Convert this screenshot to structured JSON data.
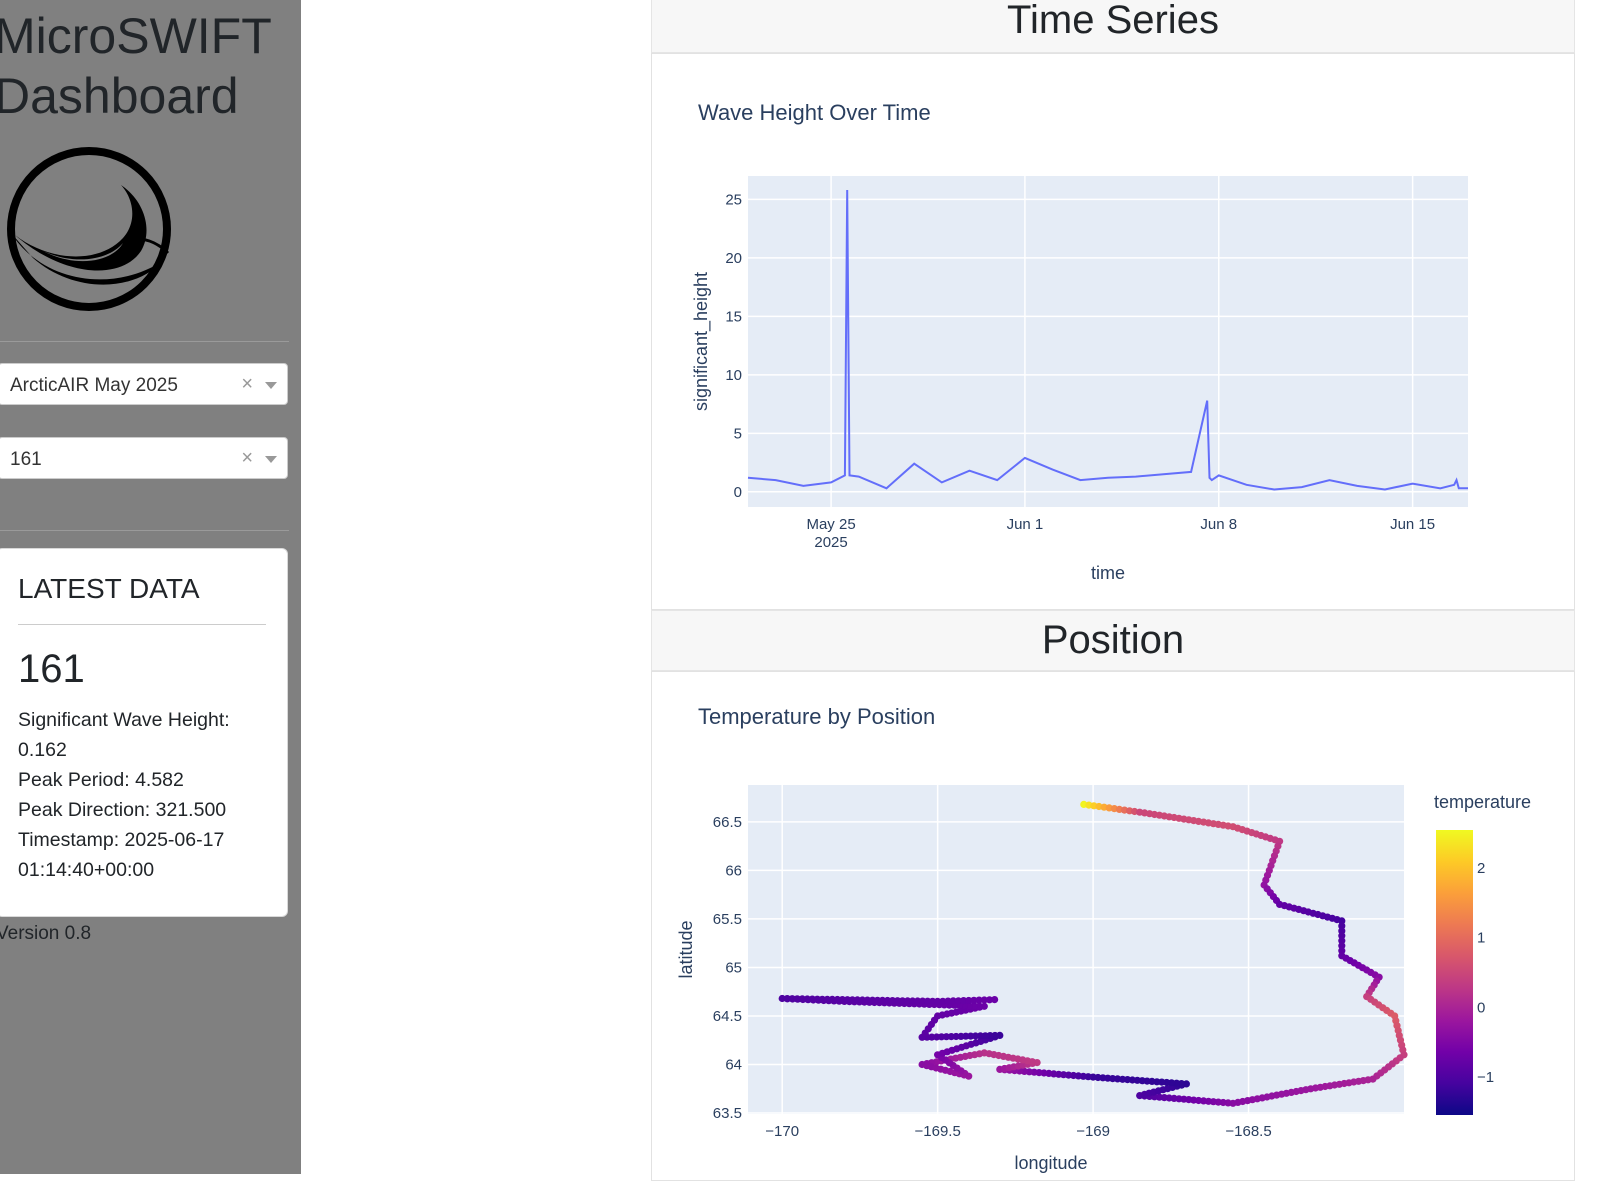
{
  "app": {
    "title_line1": "MicroSWIFT",
    "title_line2": "Dashboard",
    "version": "Version 0.8"
  },
  "filters": {
    "mission": {
      "value": "ArcticAIR May 2025",
      "clear": "×"
    },
    "buoy": {
      "value": "161",
      "clear": "×"
    }
  },
  "latest": {
    "heading": "LATEST DATA",
    "buoy_id": "161",
    "lines": [
      "Significant Wave Height:",
      "0.162",
      "Peak Period: 4.582",
      "Peak Direction: 321.500",
      "Timestamp: 2025-06-17",
      "01:14:40+00:00"
    ]
  },
  "sections": {
    "time_series": "Time Series",
    "position": "Position"
  },
  "chart_data": [
    {
      "type": "line",
      "title": "Wave Height Over Time",
      "xlabel": "time",
      "ylabel": "significant_height",
      "x_ticks": [
        "May 25",
        "Jun 1",
        "Jun 8",
        "Jun 15"
      ],
      "x_tick_sublabel": "2025",
      "y_ticks": [
        "0",
        "5",
        "10",
        "15",
        "20",
        "25"
      ],
      "xlim": [
        "2025-05-22",
        "2025-06-17"
      ],
      "ylim": [
        -1.3,
        27
      ],
      "color": "#636efa",
      "x": [
        "2025-05-22",
        "2025-05-23",
        "2025-05-24",
        "2025-05-25",
        "2025-05-25T12:00",
        "2025-05-25T14:00",
        "2025-05-25T16:00",
        "2025-05-26",
        "2025-05-27",
        "2025-05-28",
        "2025-05-29",
        "2025-05-30",
        "2025-05-31",
        "2025-06-01",
        "2025-06-02",
        "2025-06-03",
        "2025-06-04",
        "2025-06-05",
        "2025-06-06",
        "2025-06-07",
        "2025-06-07T14:00",
        "2025-06-07T16:00",
        "2025-06-07T18:00",
        "2025-06-08",
        "2025-06-09",
        "2025-06-10",
        "2025-06-11",
        "2025-06-12",
        "2025-06-13",
        "2025-06-14",
        "2025-06-15",
        "2025-06-16",
        "2025-06-16T12:00",
        "2025-06-16T14:00",
        "2025-06-16T16:00",
        "2025-06-17"
      ],
      "y": [
        1.2,
        1.0,
        0.5,
        0.8,
        1.4,
        25.8,
        1.4,
        1.3,
        0.3,
        2.4,
        0.8,
        1.8,
        1.0,
        2.9,
        1.9,
        1.0,
        1.2,
        1.3,
        1.5,
        1.7,
        7.8,
        1.2,
        1.0,
        1.4,
        0.6,
        0.2,
        0.4,
        1.0,
        0.5,
        0.2,
        0.7,
        0.3,
        0.6,
        1.0,
        0.3,
        0.3
      ]
    },
    {
      "type": "scatter",
      "title": "Temperature by Position",
      "xlabel": "longitude",
      "ylabel": "latitude",
      "colorbar_title": "temperature",
      "x_ticks": [
        "−170",
        "−169.5",
        "−169",
        "−168.5"
      ],
      "y_ticks": [
        "63.5",
        "64",
        "64.5",
        "65",
        "65.5",
        "66",
        "66.5"
      ],
      "colorbar_ticks": [
        "2",
        "1",
        "0",
        "−1"
      ],
      "xlim": [
        -170.11,
        -168.0
      ],
      "ylim": [
        63.49,
        66.88
      ],
      "colorscale": [
        "#0d0887",
        "#46039f",
        "#7201a8",
        "#9c179e",
        "#bd3786",
        "#d8576b",
        "#ed7953",
        "#fb9f3a",
        "#fdca26",
        "#f0f921"
      ],
      "clim": [
        -1.55,
        2.55
      ],
      "path": [
        {
          "lon": -169.03,
          "lat": 66.68,
          "t": 2.5
        },
        {
          "lon": -168.85,
          "lat": 66.6,
          "t": 0.5
        },
        {
          "lon": -168.55,
          "lat": 66.45,
          "t": 0.6
        },
        {
          "lon": -168.4,
          "lat": 66.3,
          "t": 0.3
        },
        {
          "lon": -168.45,
          "lat": 65.85,
          "t": -0.3
        },
        {
          "lon": -168.4,
          "lat": 65.65,
          "t": -0.8
        },
        {
          "lon": -168.2,
          "lat": 65.48,
          "t": -1.1
        },
        {
          "lon": -168.2,
          "lat": 65.12,
          "t": -0.8
        },
        {
          "lon": -168.08,
          "lat": 64.9,
          "t": -0.4
        },
        {
          "lon": -168.12,
          "lat": 64.7,
          "t": 0.4
        },
        {
          "lon": -168.03,
          "lat": 64.5,
          "t": 0.8
        },
        {
          "lon": -168.0,
          "lat": 64.1,
          "t": 0.4
        },
        {
          "lon": -168.1,
          "lat": 63.85,
          "t": 0.0
        },
        {
          "lon": -168.3,
          "lat": 63.75,
          "t": -0.2
        },
        {
          "lon": -168.55,
          "lat": 63.6,
          "t": -0.4
        },
        {
          "lon": -168.85,
          "lat": 63.68,
          "t": -1.0
        },
        {
          "lon": -168.7,
          "lat": 63.8,
          "t": -1.3
        },
        {
          "lon": -169.0,
          "lat": 63.87,
          "t": -1.2
        },
        {
          "lon": -169.3,
          "lat": 63.95,
          "t": -0.2
        },
        {
          "lon": -169.18,
          "lat": 64.02,
          "t": 0.3
        },
        {
          "lon": -169.35,
          "lat": 64.12,
          "t": 0.2
        },
        {
          "lon": -169.55,
          "lat": 64.0,
          "t": -0.4
        },
        {
          "lon": -169.4,
          "lat": 63.88,
          "t": -0.2
        },
        {
          "lon": -169.5,
          "lat": 64.1,
          "t": -0.6
        },
        {
          "lon": -169.3,
          "lat": 64.3,
          "t": -1.2
        },
        {
          "lon": -169.55,
          "lat": 64.28,
          "t": -0.9
        },
        {
          "lon": -169.5,
          "lat": 64.5,
          "t": -0.8
        },
        {
          "lon": -169.35,
          "lat": 64.6,
          "t": -0.7
        },
        {
          "lon": -169.8,
          "lat": 64.65,
          "t": -0.9
        },
        {
          "lon": -170.0,
          "lat": 64.68,
          "t": -1.0
        },
        {
          "lon": -169.5,
          "lat": 64.65,
          "t": -0.8
        },
        {
          "lon": -169.3,
          "lat": 64.67,
          "t": -0.7
        }
      ]
    }
  ]
}
